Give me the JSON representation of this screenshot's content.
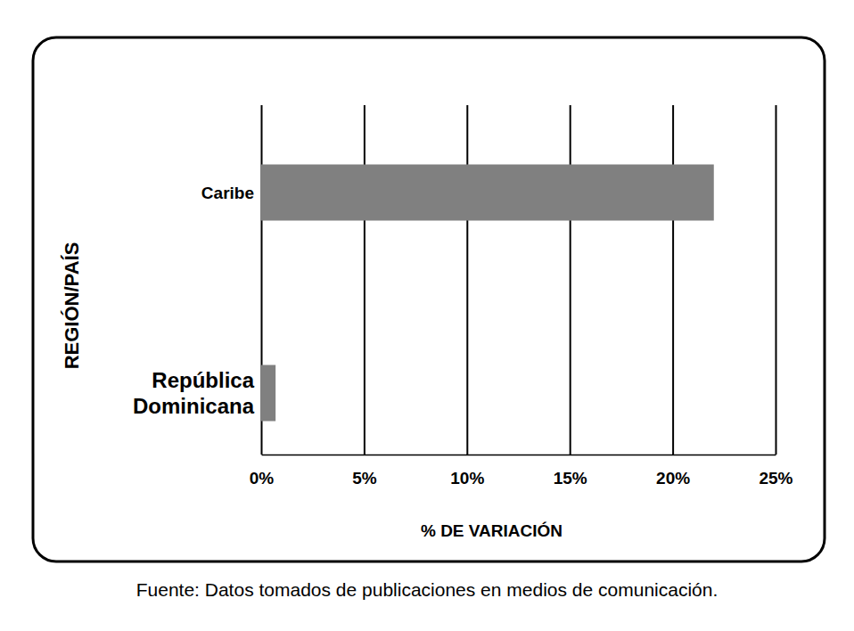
{
  "chart_data": {
    "type": "bar",
    "orientation": "horizontal",
    "categories": [
      "Caribe",
      "República Dominicana"
    ],
    "values": [
      22,
      0.7
    ],
    "color": "#808080",
    "xlabel": "% DE VARIACIÓN",
    "ylabel": "REGIÓN/PAÍS",
    "xlim": [
      0,
      25
    ],
    "xticks": [
      {
        "value": 0,
        "label": "0%"
      },
      {
        "value": 5,
        "label": "5%"
      },
      {
        "value": 10,
        "label": "10%"
      },
      {
        "value": 15,
        "label": "15%"
      },
      {
        "value": 20,
        "label": "20%"
      },
      {
        "value": 25,
        "label": "25%"
      }
    ],
    "grid": true,
    "annotations": [
      "Fuente: Datos tomados de publicaciones en medios de comunicación."
    ]
  }
}
